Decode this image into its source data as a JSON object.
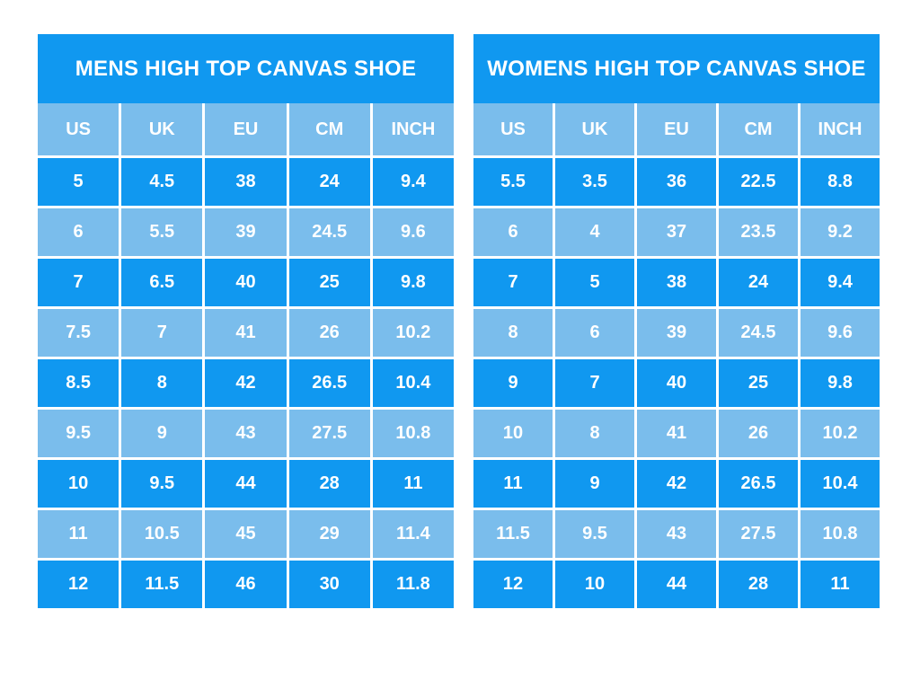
{
  "styles": {
    "page_background": "#ffffff",
    "primary_blue": "#1098F0",
    "light_blue": "#7ABDEC",
    "gridline_white": "#ffffff",
    "text_white": "#ffffff"
  },
  "chart_data": [
    {
      "type": "table",
      "title": "MENS HIGH TOP CANVAS SHOE",
      "columns": [
        "US",
        "UK",
        "EU",
        "CM",
        "INCH"
      ],
      "rows": [
        [
          "5",
          "4.5",
          "38",
          "24",
          "9.4"
        ],
        [
          "6",
          "5.5",
          "39",
          "24.5",
          "9.6"
        ],
        [
          "7",
          "6.5",
          "40",
          "25",
          "9.8"
        ],
        [
          "7.5",
          "7",
          "41",
          "26",
          "10.2"
        ],
        [
          "8.5",
          "8",
          "42",
          "26.5",
          "10.4"
        ],
        [
          "9.5",
          "9",
          "43",
          "27.5",
          "10.8"
        ],
        [
          "10",
          "9.5",
          "44",
          "28",
          "11"
        ],
        [
          "11",
          "10.5",
          "45",
          "29",
          "11.4"
        ],
        [
          "12",
          "11.5",
          "46",
          "30",
          "11.8"
        ]
      ]
    },
    {
      "type": "table",
      "title": "WOMENS HIGH TOP CANVAS SHOE",
      "columns": [
        "US",
        "UK",
        "EU",
        "CM",
        "INCH"
      ],
      "rows": [
        [
          "5.5",
          "3.5",
          "36",
          "22.5",
          "8.8"
        ],
        [
          "6",
          "4",
          "37",
          "23.5",
          "9.2"
        ],
        [
          "7",
          "5",
          "38",
          "24",
          "9.4"
        ],
        [
          "8",
          "6",
          "39",
          "24.5",
          "9.6"
        ],
        [
          "9",
          "7",
          "40",
          "25",
          "9.8"
        ],
        [
          "10",
          "8",
          "41",
          "26",
          "10.2"
        ],
        [
          "11",
          "9",
          "42",
          "26.5",
          "10.4"
        ],
        [
          "11.5",
          "9.5",
          "43",
          "27.5",
          "10.8"
        ],
        [
          "12",
          "10",
          "44",
          "28",
          "11"
        ]
      ]
    }
  ]
}
